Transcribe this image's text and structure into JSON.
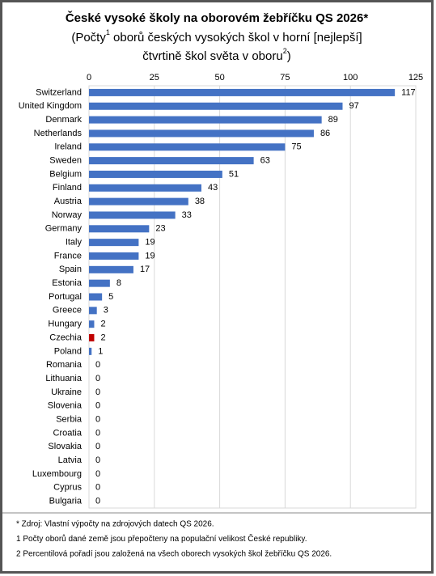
{
  "chart_data": {
    "type": "bar",
    "orientation": "horizontal",
    "title": "České vysoké školy na oborovém žebříčku QS 2026*",
    "subtitle_lines": [
      {
        "before": "(Počty",
        "sup": "1",
        "after": " oborů českých vysokých škol v horní [nejlepší]"
      },
      {
        "before": "čtvrtině škol světa v oboru",
        "sup": "2",
        "after": ")"
      }
    ],
    "categories": [
      "Switzerland",
      "United Kingdom",
      "Denmark",
      "Netherlands",
      "Ireland",
      "Sweden",
      "Belgium",
      "Finland",
      "Austria",
      "Norway",
      "Germany",
      "Italy",
      "France",
      "Spain",
      "Estonia",
      "Portugal",
      "Greece",
      "Hungary",
      "Czechia",
      "Poland",
      "Romania",
      "Lithuania",
      "Ukraine",
      "Slovenia",
      "Serbia",
      "Croatia",
      "Slovakia",
      "Latvia",
      "Luxembourg",
      "Cyprus",
      "Bulgaria"
    ],
    "values": [
      117,
      97,
      89,
      86,
      75,
      63,
      51,
      43,
      38,
      33,
      23,
      19,
      19,
      17,
      8,
      5,
      3,
      2,
      2,
      1,
      0,
      0,
      0,
      0,
      0,
      0,
      0,
      0,
      0,
      0,
      0
    ],
    "colors": [
      "#4472c4",
      "#4472c4",
      "#4472c4",
      "#4472c4",
      "#4472c4",
      "#4472c4",
      "#4472c4",
      "#4472c4",
      "#4472c4",
      "#4472c4",
      "#4472c4",
      "#4472c4",
      "#4472c4",
      "#4472c4",
      "#4472c4",
      "#4472c4",
      "#4472c4",
      "#4472c4",
      "#c00000",
      "#4472c4",
      "#4472c4",
      "#4472c4",
      "#4472c4",
      "#4472c4",
      "#4472c4",
      "#4472c4",
      "#4472c4",
      "#4472c4",
      "#4472c4",
      "#4472c4",
      "#4472c4"
    ],
    "xlim": [
      0,
      125
    ],
    "xticks": [
      0,
      25,
      50,
      75,
      100,
      125
    ],
    "grid": true,
    "footnotes": [
      "* Zdroj: Vlastní výpočty na zdrojových datech QS 2026.",
      "1 Počty oborů dané země jsou přepočteny na populační velikost České republiky.",
      "2 Percentilová pořadí jsou založená na všech oborech vysokých škol žebříčku QS 2026."
    ]
  }
}
